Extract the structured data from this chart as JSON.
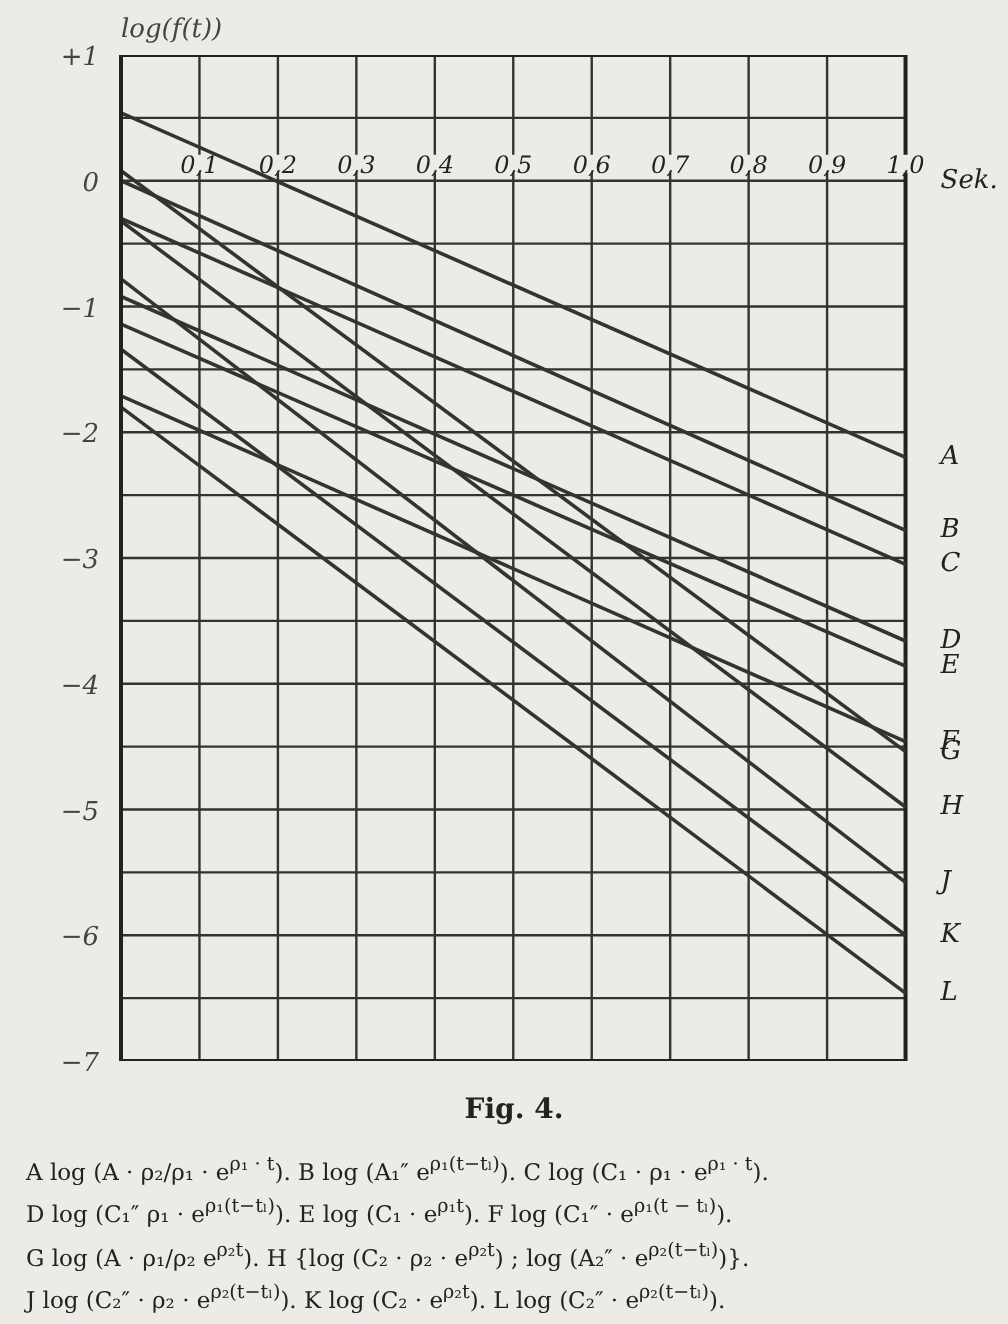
{
  "chart_data": {
    "type": "line",
    "title": "Fig. 4.",
    "xlabel": "Sek.",
    "ylabel": "log(f(t))",
    "x": [
      0,
      1
    ],
    "series": [
      {
        "name": "A",
        "color": "#333333",
        "values": [
          0.54,
          -2.2
        ]
      },
      {
        "name": "B",
        "color": "#333333",
        "values": [
          0,
          -2.78
        ]
      },
      {
        "name": "C",
        "color": "#333333",
        "values": [
          -0.3,
          -3.05
        ]
      },
      {
        "name": "D",
        "color": "#333333",
        "values": [
          -0.92,
          -3.66
        ]
      },
      {
        "name": "E",
        "color": "#333333",
        "values": [
          -1.14,
          -3.86
        ]
      },
      {
        "name": "F",
        "color": "#333333",
        "values": [
          -1.71,
          -4.46
        ]
      },
      {
        "name": "G",
        "color": "#333333",
        "values": [
          0.08,
          -4.54
        ]
      },
      {
        "name": "H",
        "color": "#333333",
        "values": [
          -0.32,
          -4.98
        ]
      },
      {
        "name": "J",
        "color": "#333333",
        "values": [
          -0.78,
          -5.58
        ]
      },
      {
        "name": "K",
        "color": "#333333",
        "values": [
          -1.34,
          -6.0
        ]
      },
      {
        "name": "L",
        "color": "#333333",
        "values": [
          -1.8,
          -6.46
        ]
      }
    ],
    "xlim": [
      0,
      1
    ],
    "xticks": [
      {
        "value": 0.1,
        "label": "0,1"
      },
      {
        "value": 0.2,
        "label": "0,2"
      },
      {
        "value": 0.3,
        "label": "0,3"
      },
      {
        "value": 0.4,
        "label": "0,4"
      },
      {
        "value": 0.5,
        "label": "0,5"
      },
      {
        "value": 0.6,
        "label": "0,6"
      },
      {
        "value": 0.7,
        "label": "0,7"
      },
      {
        "value": 0.8,
        "label": "0,8"
      },
      {
        "value": 0.9,
        "label": "0,9"
      },
      {
        "value": 1.0,
        "label": "1,0"
      }
    ],
    "ylim": [
      -7,
      1
    ],
    "yticks": [
      {
        "value": 1,
        "label": "+1"
      },
      {
        "value": 0.5,
        "label": null
      },
      0,
      {
        "value": -0.5,
        "label": null
      },
      {
        "value": -1,
        "label": "−1"
      },
      {
        "value": -1.5,
        "label": null
      },
      {
        "value": -2,
        "label": "−2"
      },
      {
        "value": -2.5,
        "label": null
      },
      {
        "value": -3,
        "label": "−3"
      },
      {
        "value": -3.5,
        "label": null
      },
      {
        "value": -4,
        "label": "−4"
      },
      {
        "value": -4.5,
        "label": null
      },
      {
        "value": -5,
        "label": "−5"
      },
      {
        "value": -5.5,
        "label": null
      },
      {
        "value": -6,
        "label": "−6"
      },
      {
        "value": -6.5,
        "label": null
      },
      {
        "value": -7,
        "label": "−7"
      }
    ],
    "grid": true,
    "line_style": "solid",
    "marker": "none",
    "annotations": [
      "A log (A · ρ₂/ρ₁ · e$^{ρ₁ · t}$).   B log (A₁″ e$^{ρ₁(t−tₗ)}$).   C log (C₁ · ρ₁ · e$^{ρ₁ · t}$).",
      "D log (C₁″ ρ₁ · e$^{ρ₁(t−tₗ)}$).   E log (C₁ · e$^{ρ₁t}$).   F log (C₁″ · e$^{ρ₁(t − tₗ)}$).",
      "G log (A · ρ₁/ρ₂ e$^{ρ₂t}$).   H {log (C₂ · ρ₂ · e$^{ρ₂t}$) ; log (A₂″ · e$^{ρ₂(t−tₗ)}$)}.",
      "J log (C₂″ · ρ₂ · e$^{ρ₂(t−tₗ)}$).   K log (C₂ · e$^{ρ₂t}$).   L log (C₂″ · e$^{ρ₂(t−tₗ)}$)."
    ]
  }
}
